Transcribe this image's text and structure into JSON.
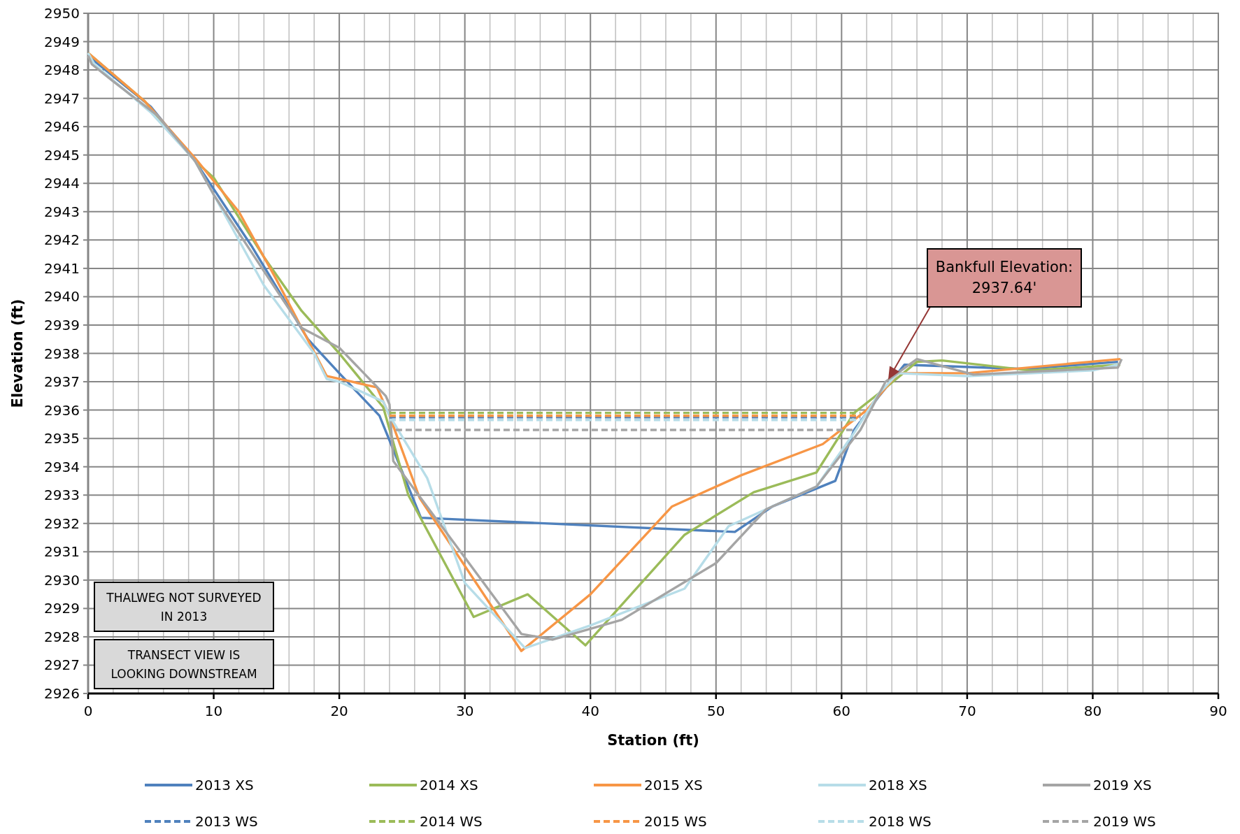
{
  "chart_data": {
    "type": "line",
    "xlabel": "Station (ft)",
    "ylabel": "Elevation (ft)",
    "xlim": [
      0,
      90
    ],
    "ylim": [
      2926,
      2950
    ],
    "xticks": [
      0,
      {
        "value": 2,
        "label": null
      },
      {
        "value": 4,
        "label": null
      },
      {
        "value": 6,
        "label": null
      },
      {
        "value": 8,
        "label": null
      },
      10,
      {
        "value": 12,
        "label": null
      },
      {
        "value": 14,
        "label": null
      },
      {
        "value": 16,
        "label": null
      },
      {
        "value": 18,
        "label": null
      },
      20,
      {
        "value": 22,
        "label": null
      },
      {
        "value": 24,
        "label": null
      },
      {
        "value": 26,
        "label": null
      },
      {
        "value": 28,
        "label": null
      },
      30,
      {
        "value": 32,
        "label": null
      },
      {
        "value": 34,
        "label": null
      },
      {
        "value": 36,
        "label": null
      },
      {
        "value": 38,
        "label": null
      },
      40,
      {
        "value": 42,
        "label": null
      },
      {
        "value": 44,
        "label": null
      },
      {
        "value": 46,
        "label": null
      },
      {
        "value": 48,
        "label": null
      },
      50,
      {
        "value": 52,
        "label": null
      },
      {
        "value": 54,
        "label": null
      },
      {
        "value": 56,
        "label": null
      },
      {
        "value": 58,
        "label": null
      },
      60,
      {
        "value": 62,
        "label": null
      },
      {
        "value": 64,
        "label": null
      },
      {
        "value": 66,
        "label": null
      },
      {
        "value": 68,
        "label": null
      },
      70,
      {
        "value": 72,
        "label": null
      },
      {
        "value": 74,
        "label": null
      },
      {
        "value": 76,
        "label": null
      },
      {
        "value": 78,
        "label": null
      },
      80,
      {
        "value": 82,
        "label": null
      },
      {
        "value": 84,
        "label": null
      },
      {
        "value": 86,
        "label": null
      },
      {
        "value": 88,
        "label": null
      },
      90
    ],
    "yticks": [
      2926,
      2927,
      2928,
      2929,
      2930,
      2931,
      2932,
      2933,
      2934,
      2935,
      2936,
      2937,
      2938,
      2939,
      2940,
      2941,
      2942,
      2943,
      2944,
      2945,
      2946,
      2947,
      2948,
      2949,
      2950
    ],
    "grid": true,
    "legend": "bottom",
    "marker": "none",
    "series": [
      {
        "name": "2013 XS",
        "color": "#4f81bd",
        "line_style": "solid",
        "x": [
          0,
          5,
          8.5,
          10,
          13,
          17.5,
          20,
          23.2,
          26.5,
          51.5,
          54.5,
          59.5,
          61,
          63,
          65,
          74.5,
          82
        ],
        "values": [
          2948.5,
          2946.7,
          2944.8,
          2943.8,
          2941.8,
          2938.5,
          2937.3,
          2935.8,
          2932.2,
          2931.7,
          2932.6,
          2933.5,
          2935.3,
          2936.5,
          2937.6,
          2937.45,
          2937.7
        ]
      },
      {
        "name": "2014 XS",
        "color": "#9bbb59",
        "line_style": "solid",
        "x": [
          0,
          4.5,
          8.5,
          10,
          14,
          17,
          20,
          23.5,
          25.5,
          30.7,
          35,
          39.6,
          47.5,
          53,
          58,
          61,
          63,
          66,
          68,
          75,
          82.2
        ],
        "values": [
          2948.6,
          2946.9,
          2944.8,
          2944.2,
          2941.4,
          2939.5,
          2938,
          2936.1,
          2933,
          2928.7,
          2929.5,
          2927.7,
          2931.6,
          2933.1,
          2933.8,
          2935.9,
          2936.6,
          2937.7,
          2937.75,
          2937.4,
          2937.6
        ]
      },
      {
        "name": "2015 XS",
        "color": "#f79646",
        "line_style": "solid",
        "x": [
          0,
          4.5,
          8.5,
          12,
          15,
          19,
          23,
          24,
          26.4,
          34.5,
          40,
          46.5,
          52,
          58.5,
          62,
          64.5,
          70,
          82.2
        ],
        "values": [
          2948.6,
          2946.9,
          2944.9,
          2943,
          2940.6,
          2937.2,
          2936.8,
          2935.8,
          2932.9,
          2927.5,
          2929.5,
          2932.6,
          2933.7,
          2934.8,
          2936,
          2937.3,
          2937.3,
          2937.8
        ]
      },
      {
        "name": "2018 XS",
        "color": "#b7dde8",
        "line_style": "solid",
        "x": [
          0,
          0.5,
          5,
          8.5,
          10,
          14,
          18,
          19,
          20,
          23.5,
          24,
          27,
          30,
          34.8,
          40,
          47.5,
          51,
          58,
          61,
          63,
          64.5,
          70,
          80,
          82
        ],
        "values": [
          2948.6,
          2948.2,
          2946.5,
          2944.8,
          2943.6,
          2940.4,
          2938,
          2937.1,
          2937,
          2936.3,
          2935.8,
          2933.6,
          2929.9,
          2927.6,
          2928.4,
          2929.7,
          2931.9,
          2933.3,
          2935.2,
          2936.6,
          2937.3,
          2937.2,
          2937.4,
          2937.6
        ]
      },
      {
        "name": "2019 XS",
        "color": "#a5a5a5",
        "line_style": "solid",
        "x": [
          0,
          0.3,
          2,
          5.5,
          8.5,
          10,
          14,
          17,
          20,
          23.7,
          24,
          24.3,
          30,
          34.5,
          37,
          42.5,
          50,
          54,
          58,
          61.5,
          63.5,
          66,
          70.5,
          82,
          82.3
        ],
        "values": [
          2948.5,
          2948.2,
          2947.6,
          2946.4,
          2944.8,
          2943.6,
          2940.9,
          2938.9,
          2938.2,
          2936.5,
          2936.2,
          2934.2,
          2930.8,
          2928.1,
          2927.9,
          2928.6,
          2930.6,
          2932.5,
          2933.3,
          2935.3,
          2937,
          2937.8,
          2937.25,
          2937.5,
          2937.8
        ]
      },
      {
        "name": "2013 WS",
        "color": "#4f81bd",
        "line_style": "dashed",
        "x": [
          24,
          61.5
        ],
        "values": [
          2935.75,
          2935.75
        ]
      },
      {
        "name": "2014 WS",
        "color": "#9bbb59",
        "line_style": "dashed",
        "x": [
          24,
          61.5
        ],
        "values": [
          2935.9,
          2935.9
        ]
      },
      {
        "name": "2015 WS",
        "color": "#f79646",
        "line_style": "dashed",
        "x": [
          24,
          61.5
        ],
        "values": [
          2935.8,
          2935.8
        ]
      },
      {
        "name": "2018 WS",
        "color": "#b7dde8",
        "line_style": "dashed",
        "x": [
          24,
          61.5
        ],
        "values": [
          2935.65,
          2935.65
        ]
      },
      {
        "name": "2019 WS",
        "color": "#a5a5a5",
        "line_style": "dashed",
        "x": [
          24.5,
          61
        ],
        "values": [
          2935.3,
          2935.3
        ]
      }
    ],
    "annotations": [
      "Bankfull Elevation:\n2937.64'",
      "THALWEG NOT SURVEYED\nIN 2013",
      "TRANSECT VIEW IS\nLOOKING DOWNSTREAM"
    ]
  }
}
